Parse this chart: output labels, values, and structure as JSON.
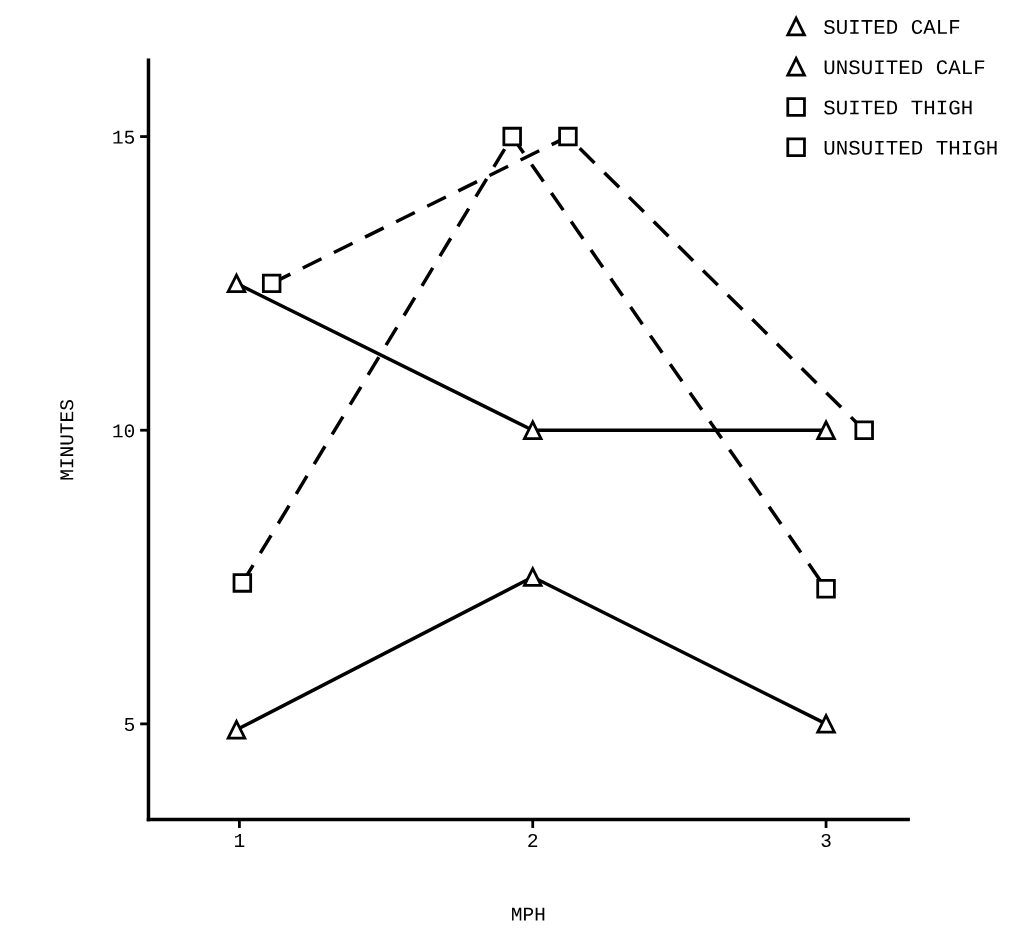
{
  "chart_data": {
    "type": "line",
    "xlabel": "MPH",
    "ylabel": "MINUTES",
    "xlim": [
      0.69,
      3.28
    ],
    "xticks": [
      1,
      2,
      3
    ],
    "ylim": [
      3.37,
      16.3
    ],
    "yticks": [
      5,
      10,
      15
    ],
    "grid": false,
    "legend": "top right",
    "series": [
      {
        "name": "SUITED CALF",
        "color": "#000000",
        "marker": "triangle",
        "line_style": "solid",
        "x": [
          0.99,
          2,
          3
        ],
        "values": [
          4.9,
          7.5,
          5
        ]
      },
      {
        "name": "UNSUITED CALF",
        "color": "#000000",
        "marker": "triangle",
        "line_style": "solid",
        "x": [
          0.99,
          2,
          3
        ],
        "values": [
          12.5,
          10,
          10
        ]
      },
      {
        "name": "SUITED THIGH",
        "color": "#000000",
        "marker": "square",
        "line_style": "dashed",
        "x": [
          1.01,
          1.93,
          3.0
        ],
        "values": [
          7.4,
          15,
          7.3
        ]
      },
      {
        "name": "UNSUITED THIGH",
        "color": "#000000",
        "marker": "square",
        "line_style": "dashed",
        "x": [
          1.11,
          2.12,
          3.13
        ],
        "values": [
          12.5,
          15,
          10
        ]
      }
    ]
  }
}
